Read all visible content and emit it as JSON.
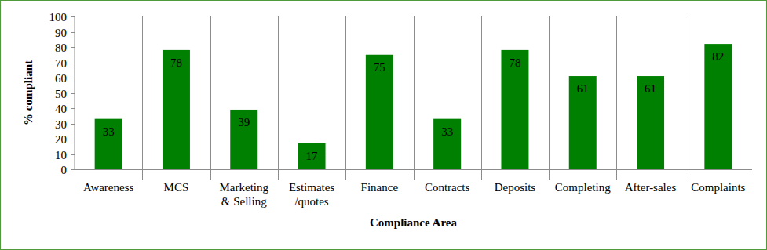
{
  "chart_data": {
    "type": "bar",
    "categories": [
      "Awareness",
      "MCS",
      "Marketing & Selling",
      "Estimates /quotes",
      "Finance",
      "Contracts",
      "Deposits",
      "Completing",
      "After-sales",
      "Complaints"
    ],
    "values": [
      33,
      78,
      39,
      17,
      75,
      33,
      78,
      61,
      61,
      82
    ],
    "color": "#008000",
    "x_label": "Compliance Area",
    "y_label": "% compliant",
    "ylim": [
      0,
      100
    ],
    "yticks": [
      0,
      10,
      20,
      30,
      40,
      50,
      60,
      70,
      80,
      90,
      100
    ],
    "grid": false,
    "data_labels": true
  }
}
